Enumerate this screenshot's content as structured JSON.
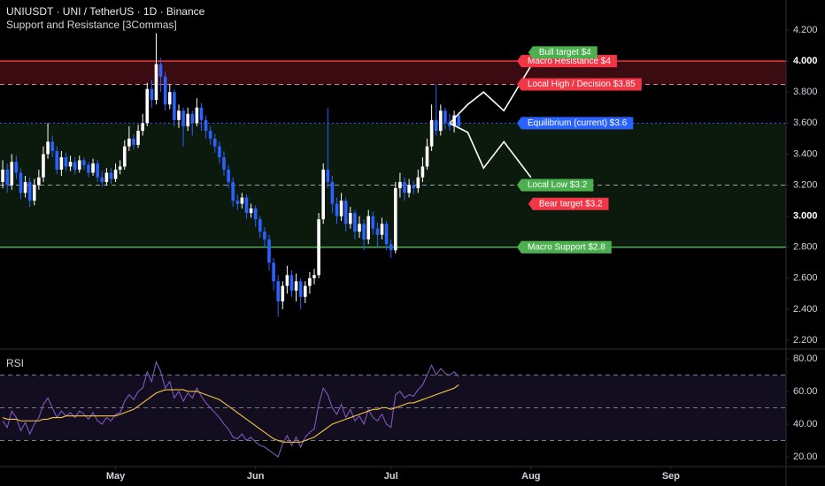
{
  "chart_data": {
    "type": "candlestick",
    "title": "UNIUSDT · UNI / TetherUS · 1D · Binance",
    "subtitle": "Support and Resistance [3Commas]",
    "x": [
      0,
      1,
      2,
      3,
      4,
      5,
      6,
      7,
      8,
      9,
      10,
      11,
      12,
      13,
      14,
      15,
      16,
      17,
      18,
      19,
      20,
      21,
      22,
      23,
      24,
      25,
      26,
      27,
      28,
      29,
      30,
      31,
      32,
      33,
      34,
      35,
      36,
      37,
      38,
      39,
      40,
      41,
      42,
      43,
      44,
      45,
      46,
      47,
      48,
      49,
      50,
      51,
      52,
      53,
      54,
      55,
      56,
      57,
      58,
      59,
      60,
      61,
      62,
      63,
      64,
      65,
      66,
      67,
      68,
      69,
      70,
      71,
      72,
      73,
      74,
      75,
      76,
      77,
      78,
      79,
      80,
      81,
      82,
      83,
      84,
      85,
      86,
      87,
      88,
      89,
      90,
      91,
      92,
      93,
      94,
      95,
      96,
      97,
      98,
      99,
      100,
      101
    ],
    "open": [
      3.22,
      3.3,
      3.2,
      3.35,
      3.28,
      3.15,
      3.22,
      3.1,
      3.2,
      3.25,
      3.4,
      3.48,
      3.42,
      3.3,
      3.38,
      3.32,
      3.35,
      3.3,
      3.36,
      3.33,
      3.28,
      3.34,
      3.25,
      3.22,
      3.28,
      3.24,
      3.3,
      3.32,
      3.45,
      3.5,
      3.46,
      3.55,
      3.6,
      3.82,
      3.75,
      3.98,
      3.9,
      3.72,
      3.8,
      3.62,
      3.68,
      3.58,
      3.66,
      3.6,
      3.7,
      3.62,
      3.55,
      3.5,
      3.45,
      3.38,
      3.3,
      3.22,
      3.1,
      3.08,
      3.12,
      3.02,
      3.05,
      2.98,
      2.9,
      2.85,
      2.7,
      2.58,
      2.45,
      2.55,
      2.62,
      2.52,
      2.58,
      2.48,
      2.55,
      2.6,
      2.62,
      2.98,
      3.3,
      3.22,
      3.08,
      3.0,
      3.1,
      2.95,
      3.02,
      2.9,
      2.95,
      2.85,
      3.0,
      2.92,
      2.88,
      2.95,
      2.82,
      2.78,
      3.18,
      3.22,
      3.15,
      3.2,
      3.18,
      3.25,
      3.32,
      3.45,
      3.62,
      3.55,
      3.68,
      3.6,
      3.58,
      3.65
    ],
    "high": [
      3.36,
      3.34,
      3.4,
      3.39,
      3.31,
      3.26,
      3.25,
      3.24,
      3.3,
      3.45,
      3.6,
      3.52,
      3.45,
      3.42,
      3.41,
      3.39,
      3.38,
      3.39,
      3.38,
      3.35,
      3.37,
      3.36,
      3.29,
      3.31,
      3.31,
      3.34,
      3.36,
      3.49,
      3.58,
      3.53,
      3.59,
      3.66,
      3.86,
      3.88,
      4.18,
      4.02,
      3.93,
      3.85,
      3.82,
      3.72,
      3.7,
      3.7,
      3.68,
      3.76,
      3.73,
      3.65,
      3.58,
      3.53,
      3.48,
      3.42,
      3.33,
      3.25,
      3.14,
      3.15,
      3.14,
      3.08,
      3.07,
      3.0,
      2.93,
      2.88,
      2.73,
      2.62,
      2.58,
      2.68,
      2.65,
      2.63,
      2.6,
      2.58,
      2.64,
      2.66,
      3.02,
      3.34,
      3.7,
      3.26,
      3.12,
      3.15,
      3.12,
      3.06,
      3.04,
      3.0,
      2.98,
      3.04,
      3.03,
      2.96,
      2.99,
      2.97,
      2.85,
      3.22,
      3.28,
      3.25,
      3.24,
      3.23,
      3.3,
      3.38,
      3.5,
      3.72,
      3.85,
      3.72,
      3.7,
      3.66,
      3.68,
      3.67
    ],
    "low": [
      3.18,
      3.15,
      3.17,
      3.24,
      3.11,
      3.12,
      3.06,
      3.07,
      3.17,
      3.22,
      3.37,
      3.38,
      3.27,
      3.26,
      3.29,
      3.29,
      3.27,
      3.28,
      3.3,
      3.25,
      3.26,
      3.22,
      3.19,
      3.2,
      3.21,
      3.22,
      3.27,
      3.3,
      3.42,
      3.43,
      3.44,
      3.52,
      3.58,
      3.7,
      3.72,
      3.8,
      3.68,
      3.69,
      3.58,
      3.57,
      3.45,
      3.55,
      3.52,
      3.58,
      3.55,
      3.5,
      3.46,
      3.41,
      3.34,
      3.26,
      3.18,
      3.06,
      3.04,
      3.05,
      2.98,
      2.99,
      2.93,
      2.86,
      2.8,
      2.65,
      2.52,
      2.35,
      2.4,
      2.5,
      2.48,
      2.45,
      2.4,
      2.44,
      2.5,
      2.56,
      2.6,
      2.95,
      3.18,
      3.02,
      2.95,
      2.97,
      2.9,
      2.92,
      2.85,
      2.86,
      2.78,
      2.82,
      2.88,
      2.8,
      2.85,
      2.78,
      2.73,
      2.76,
      3.12,
      3.1,
      3.12,
      3.14,
      3.15,
      3.22,
      3.3,
      3.42,
      3.52,
      3.52,
      3.56,
      3.55,
      3.54,
      3.56
    ],
    "close": [
      3.3,
      3.2,
      3.35,
      3.28,
      3.15,
      3.22,
      3.1,
      3.2,
      3.25,
      3.4,
      3.48,
      3.42,
      3.3,
      3.38,
      3.32,
      3.35,
      3.3,
      3.36,
      3.33,
      3.28,
      3.34,
      3.25,
      3.22,
      3.28,
      3.24,
      3.3,
      3.32,
      3.45,
      3.5,
      3.46,
      3.55,
      3.6,
      3.82,
      3.75,
      3.98,
      3.9,
      3.72,
      3.8,
      3.62,
      3.68,
      3.58,
      3.66,
      3.6,
      3.7,
      3.62,
      3.55,
      3.5,
      3.45,
      3.38,
      3.3,
      3.22,
      3.1,
      3.08,
      3.12,
      3.02,
      3.05,
      2.98,
      2.9,
      2.85,
      2.7,
      2.58,
      2.45,
      2.55,
      2.62,
      2.52,
      2.58,
      2.48,
      2.55,
      2.6,
      2.62,
      2.98,
      3.3,
      3.22,
      3.08,
      3.0,
      3.1,
      2.95,
      3.02,
      2.9,
      2.95,
      2.85,
      3.0,
      2.92,
      2.88,
      2.95,
      2.82,
      2.78,
      3.18,
      3.22,
      3.15,
      3.2,
      3.18,
      3.25,
      3.32,
      3.45,
      3.62,
      3.55,
      3.68,
      3.6,
      3.58,
      3.65,
      3.58
    ],
    "up_color": "#ffffff",
    "down_color": "#2962ff",
    "xlim": [
      -0.6,
      173.5
    ],
    "xticks": [
      {
        "value": 25,
        "label": "May"
      },
      {
        "value": 56,
        "label": "Jun"
      },
      {
        "value": 86,
        "label": "Jul"
      },
      {
        "value": 117,
        "label": "Aug"
      },
      {
        "value": 148,
        "label": "Sep"
      }
    ],
    "ylim": [
      2.143,
      4.394
    ],
    "yticks": [
      {
        "value": 4.2,
        "label": "4.200"
      },
      {
        "value": 4,
        "label": "4.000"
      },
      {
        "value": 3.8,
        "label": "3.800"
      },
      {
        "value": 3.6,
        "label": "3.600"
      },
      {
        "value": 3.4,
        "label": "3.400"
      },
      {
        "value": 3.2,
        "label": "3.200"
      },
      {
        "value": 3,
        "label": "3.000"
      },
      {
        "value": 2.8,
        "label": "2.800"
      },
      {
        "value": 2.6,
        "label": "2.600"
      },
      {
        "value": 2.4,
        "label": "2.400"
      },
      {
        "value": 2.2,
        "label": "2.200"
      }
    ],
    "zones": [
      {
        "from": 3.85,
        "to": 4,
        "color": "#3a0b10"
      },
      {
        "from": 2.8,
        "to": 3.6,
        "color": "#0b1a0d"
      }
    ],
    "levels": [
      {
        "label": "Macro Resistance $4",
        "value": 4,
        "color": "#f23645",
        "style": "solid"
      },
      {
        "label": "Local High / Decision $3.85",
        "value": 3.85,
        "color": "#f23645",
        "style": "dashed"
      },
      {
        "label": "Equilibrium (current) $3.6",
        "value": 3.6,
        "color": "#2962ff",
        "style": "dotted"
      },
      {
        "label": "Local Low $3.2",
        "value": 3.2,
        "color": "#4caf50",
        "style": "dashed"
      },
      {
        "label": "Macro Support $2.8",
        "value": 2.8,
        "color": "#4caf50",
        "style": "solid"
      }
    ],
    "projections": [
      {
        "label": "Bull target $4",
        "color": "#4caf50",
        "x": [
          99,
          103,
          106.5,
          111,
          117
        ],
        "values": [
          3.6,
          3.72,
          3.8,
          3.68,
          3.97
        ]
      },
      {
        "label": "Bear target $3.2",
        "color": "#f23645",
        "x": [
          99,
          103,
          106.5,
          111,
          117
        ],
        "values": [
          3.6,
          3.54,
          3.31,
          3.48,
          3.25
        ]
      }
    ],
    "rsi": {
      "title": "RSI",
      "ylim": [
        14.05,
        85.9
      ],
      "yticks": [
        {
          "value": 80,
          "label": "80.00"
        },
        {
          "value": 60,
          "label": "60.00"
        },
        {
          "value": 40,
          "label": "40.00"
        },
        {
          "value": 20,
          "label": "20.00"
        }
      ],
      "upper": 70,
      "middle": 50,
      "lower": 30,
      "series": [
        {
          "color": "#7e57c2",
          "values": [
            42,
            38,
            48,
            44,
            36,
            41,
            34,
            40,
            44,
            52,
            56,
            50,
            44,
            48,
            45,
            47,
            44,
            48,
            46,
            43,
            47,
            42,
            40,
            44,
            42,
            46,
            47,
            54,
            58,
            55,
            60,
            62,
            72,
            66,
            78,
            72,
            62,
            66,
            56,
            60,
            54,
            59,
            56,
            62,
            57,
            53,
            50,
            47,
            44,
            40,
            37,
            32,
            31,
            34,
            30,
            32,
            29,
            27,
            26,
            24,
            22,
            20,
            28,
            33,
            27,
            32,
            26,
            32,
            35,
            37,
            52,
            62,
            58,
            50,
            46,
            52,
            44,
            49,
            42,
            45,
            40,
            49,
            44,
            42,
            46,
            40,
            38,
            58,
            60,
            56,
            58,
            57,
            61,
            64,
            70,
            76,
            70,
            74,
            71,
            70,
            72,
            69
          ]
        },
        {
          "color": "#f5c542",
          "values": [
            44,
            43,
            43,
            43,
            42,
            42,
            42,
            42,
            42,
            43,
            43,
            44,
            44,
            44,
            45,
            45,
            45,
            45,
            45,
            45,
            45,
            45,
            45,
            45,
            45,
            45,
            46,
            47,
            48,
            49,
            51,
            53,
            55,
            57,
            59,
            60,
            61,
            61,
            61,
            61,
            61,
            60,
            60,
            60,
            59,
            58,
            57,
            56,
            55,
            53,
            51,
            49,
            47,
            45,
            43,
            41,
            39,
            37,
            35,
            33,
            31,
            30,
            29,
            29,
            29,
            29,
            29,
            30,
            31,
            32,
            34,
            36,
            38,
            40,
            41,
            42,
            43,
            44,
            45,
            46,
            47,
            48,
            49,
            49,
            50,
            50,
            49,
            50,
            51,
            52,
            53,
            53,
            54,
            55,
            56,
            57,
            58,
            59,
            60,
            61,
            62,
            64
          ]
        }
      ]
    }
  }
}
